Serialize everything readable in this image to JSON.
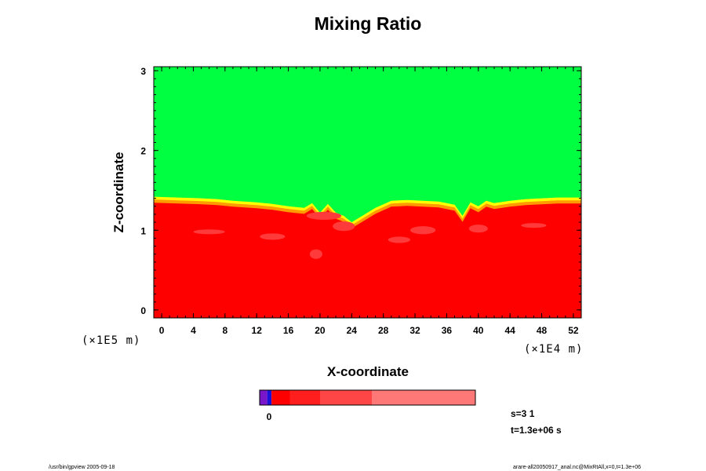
{
  "chart_data": {
    "type": "heatmap",
    "title": "Mixing Ratio",
    "xlabel": "X-coordinate",
    "ylabel": "Z-coordinate",
    "x_unit_label": "(×1E4 m)",
    "y_unit_label": "(×1E5 m)",
    "x_ticks": [
      "0",
      "4",
      "8",
      "12",
      "16",
      "20",
      "24",
      "28",
      "32",
      "36",
      "40",
      "44",
      "48",
      "52"
    ],
    "y_ticks": [
      "0",
      "1",
      "2",
      "3"
    ],
    "xlim": [
      -1,
      53
    ],
    "ylim": [
      -0.1,
      3.05
    ],
    "interface": {
      "x": [
        -1,
        2,
        5,
        7,
        9,
        12,
        14,
        16,
        18,
        19,
        20,
        21,
        22,
        23,
        24,
        25,
        27,
        29,
        31,
        33,
        35,
        37,
        38,
        39,
        40,
        41,
        42,
        44,
        46,
        48,
        50,
        53
      ],
      "z": [
        1.42,
        1.41,
        1.4,
        1.39,
        1.37,
        1.35,
        1.33,
        1.3,
        1.28,
        1.34,
        1.22,
        1.33,
        1.22,
        1.18,
        1.1,
        1.16,
        1.28,
        1.37,
        1.38,
        1.37,
        1.36,
        1.32,
        1.18,
        1.35,
        1.3,
        1.37,
        1.34,
        1.37,
        1.39,
        1.4,
        1.41,
        1.41
      ]
    },
    "regions": [
      {
        "label": "upper layer",
        "color": "#00ff40"
      },
      {
        "label": "lower layer",
        "color": "#ff0000"
      }
    ],
    "colorbar": {
      "tick_label": "0",
      "colors": [
        "#7a16c9",
        "#1c10d8",
        "#ff0000",
        "#ff1e1e",
        "#ff4646",
        "#ff7878",
        "#ff9c9c"
      ],
      "stops": [
        0,
        0.035,
        0.055,
        0.14,
        0.28,
        0.52,
        1.0
      ]
    },
    "annotations": [
      "s=3 1",
      "t=1.3e+06 s"
    ]
  },
  "footer": {
    "left": "/usr/bin/gpview 2005-09-18",
    "right": "arare-all20050917_anal.nc@MixRtAll,x=0,t=1.3e+06"
  }
}
